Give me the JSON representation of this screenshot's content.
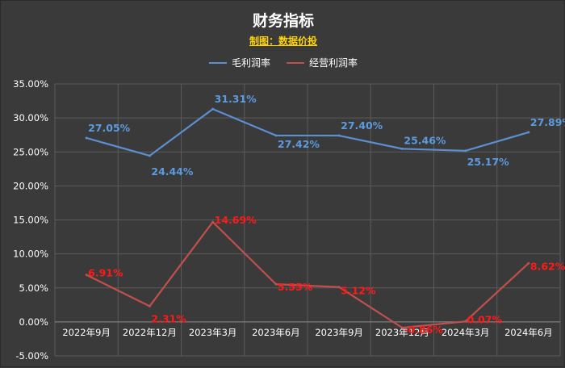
{
  "chart_data": {
    "type": "line",
    "title": "财务指标",
    "subtitle": "制图：数据价投",
    "categories": [
      "2022年9月",
      "2022年12月",
      "2023年3月",
      "2023年6月",
      "2023年9月",
      "2023年12月",
      "2024年3月",
      "2024年6月"
    ],
    "ylim": [
      -5,
      35
    ],
    "yticks": [
      "35.00%",
      "30.00%",
      "25.00%",
      "20.00%",
      "15.00%",
      "10.00%",
      "5.00%",
      "0.00%",
      "-5.00%"
    ],
    "ytick_values": [
      35,
      30,
      25,
      20,
      15,
      10,
      5,
      0,
      -5
    ],
    "grid": true,
    "legend_position": "top-center",
    "series": [
      {
        "name": "毛利润率",
        "color": "#5b8fd0",
        "label_color": "#5b9be0",
        "values": [
          27.05,
          24.44,
          31.31,
          27.42,
          27.4,
          25.46,
          25.17,
          27.89
        ],
        "labels": [
          "27.05%",
          "24.44%",
          "31.31%",
          "27.42%",
          "27.40%",
          "25.46%",
          "25.17%",
          "27.89%"
        ]
      },
      {
        "name": "经营利润率",
        "color": "#c0504d",
        "label_color": "#ff1a1a",
        "values": [
          6.91,
          2.31,
          14.69,
          5.55,
          5.12,
          -0.86,
          0.07,
          8.62
        ],
        "labels": [
          "6.91%",
          "2.31%",
          "14.69%",
          "5.55%",
          "5.12%",
          "-0.86%",
          "0.07%",
          "8.62%"
        ]
      }
    ]
  }
}
